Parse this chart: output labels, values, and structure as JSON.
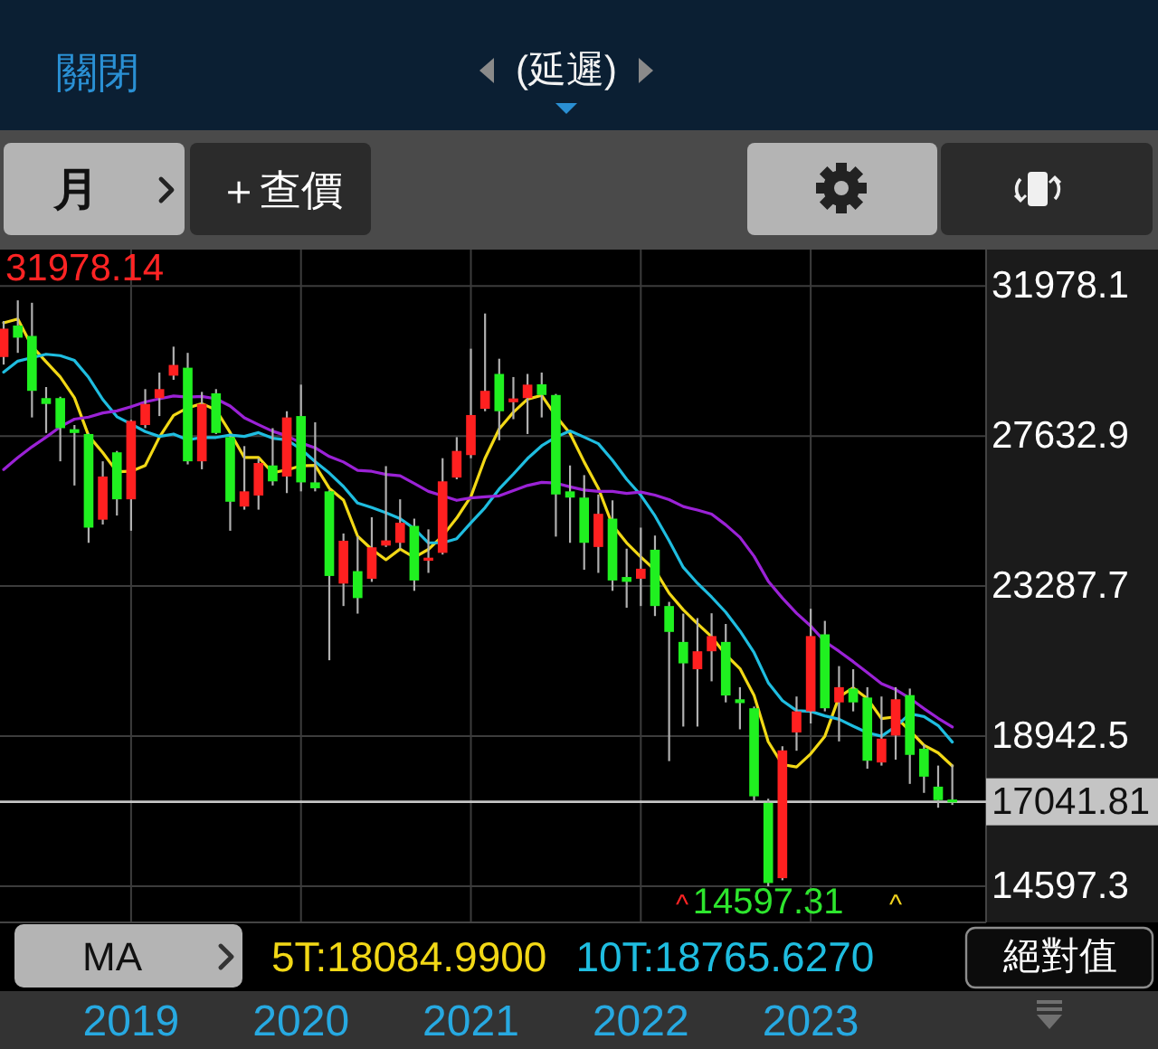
{
  "chart_data": {
    "type": "candlestick",
    "title": "(延遲)",
    "x": [
      "2018-04",
      "2018-05",
      "2018-06",
      "2018-07",
      "2018-08",
      "2018-09",
      "2018-10",
      "2018-11",
      "2018-12",
      "2019-01",
      "2019-02",
      "2019-03",
      "2019-04",
      "2019-05",
      "2019-06",
      "2019-07",
      "2019-08",
      "2019-09",
      "2019-10",
      "2019-11",
      "2019-12",
      "2020-01",
      "2020-02",
      "2020-03",
      "2020-04",
      "2020-05",
      "2020-06",
      "2020-07",
      "2020-08",
      "2020-09",
      "2020-10",
      "2020-11",
      "2020-12",
      "2021-01",
      "2021-02",
      "2021-03",
      "2021-04",
      "2021-05",
      "2021-06",
      "2021-07",
      "2021-08",
      "2021-09",
      "2021-10",
      "2021-11",
      "2021-12",
      "2022-01",
      "2022-02",
      "2022-03",
      "2022-04",
      "2022-05",
      "2022-06",
      "2022-07",
      "2022-08",
      "2022-09",
      "2022-10",
      "2022-11",
      "2022-12",
      "2023-01",
      "2023-02",
      "2023-03",
      "2023-04",
      "2023-05",
      "2023-06",
      "2023-07",
      "2023-08",
      "2023-09",
      "2023-10",
      "2023-11"
    ],
    "ohlc": [
      [
        29920,
        30960,
        29700,
        30740
      ],
      [
        30830,
        31560,
        30040,
        30480
      ],
      [
        30530,
        31490,
        28170,
        28940
      ],
      [
        28730,
        29050,
        27720,
        28560
      ],
      [
        28730,
        28770,
        26900,
        27860
      ],
      [
        27830,
        27950,
        26200,
        27720
      ],
      [
        27690,
        27720,
        24540,
        24980
      ],
      [
        25210,
        26900,
        25070,
        26460
      ],
      [
        27160,
        27200,
        25330,
        25800
      ],
      [
        25800,
        28100,
        24890,
        28070
      ],
      [
        27950,
        28990,
        27860,
        28560
      ],
      [
        28730,
        29470,
        28210,
        28990
      ],
      [
        29380,
        30220,
        29260,
        29690
      ],
      [
        29610,
        30040,
        26810,
        26900
      ],
      [
        26900,
        28910,
        26670,
        28560
      ],
      [
        28870,
        28990,
        27690,
        27720
      ],
      [
        27600,
        27630,
        24890,
        25730
      ],
      [
        25590,
        27340,
        25500,
        26030
      ],
      [
        25910,
        26990,
        25500,
        26850
      ],
      [
        26780,
        27860,
        26200,
        26320
      ],
      [
        26460,
        28350,
        25980,
        28170
      ],
      [
        28210,
        29120,
        26030,
        26290
      ],
      [
        26290,
        28030,
        26030,
        26120
      ],
      [
        26030,
        26060,
        21140,
        23580
      ],
      [
        23360,
        24810,
        22710,
        24600
      ],
      [
        23720,
        24720,
        22490,
        22940
      ],
      [
        23500,
        25280,
        23410,
        24410
      ],
      [
        24460,
        26760,
        24420,
        24610
      ],
      [
        24540,
        25800,
        24370,
        25120
      ],
      [
        25030,
        25240,
        23150,
        23450
      ],
      [
        24020,
        24930,
        23670,
        24110
      ],
      [
        24250,
        26990,
        24200,
        26320
      ],
      [
        26430,
        27600,
        26380,
        27200
      ],
      [
        27080,
        30160,
        26990,
        28240
      ],
      [
        28420,
        31180,
        28350,
        28940
      ],
      [
        29430,
        29870,
        27510,
        28350
      ],
      [
        28610,
        29340,
        28120,
        28720
      ],
      [
        28730,
        29430,
        27690,
        29120
      ],
      [
        29130,
        29470,
        28170,
        28820
      ],
      [
        28820,
        28850,
        24720,
        25940
      ],
      [
        26030,
        26780,
        24540,
        25850
      ],
      [
        25850,
        26500,
        23760,
        24540
      ],
      [
        24420,
        25940,
        23670,
        25380
      ],
      [
        25240,
        25770,
        23150,
        23450
      ],
      [
        23550,
        24370,
        22660,
        23410
      ],
      [
        23500,
        24980,
        22710,
        23790
      ],
      [
        24340,
        24750,
        22420,
        22710
      ],
      [
        22710,
        22830,
        18220,
        21960
      ],
      [
        21670,
        22490,
        19220,
        21050
      ],
      [
        20880,
        22360,
        19220,
        21400
      ],
      [
        21400,
        22500,
        20530,
        21840
      ],
      [
        21670,
        22190,
        19920,
        20120
      ],
      [
        20010,
        20360,
        19140,
        19900
      ],
      [
        19750,
        19800,
        17040,
        17200
      ],
      [
        17010,
        17130,
        14597.31,
        14690
      ],
      [
        14830,
        18650,
        14770,
        18530
      ],
      [
        19050,
        20090,
        18520,
        19660
      ],
      [
        19660,
        22630,
        19310,
        21840
      ],
      [
        21890,
        22280,
        19660,
        19750
      ],
      [
        19920,
        20970,
        18790,
        20360
      ],
      [
        20320,
        20880,
        19660,
        19920
      ],
      [
        20060,
        20360,
        18000,
        18230
      ],
      [
        18180,
        20090,
        18090,
        18870
      ],
      [
        18960,
        20360,
        18260,
        20010
      ],
      [
        20130,
        20320,
        17560,
        18400
      ],
      [
        18580,
        18700,
        17300,
        17770
      ],
      [
        17480,
        18090,
        16870,
        17090
      ],
      [
        17090,
        18120,
        16950,
        17041.81
      ]
    ],
    "colors": [
      "#ff2020",
      "#20f020",
      "#20f020",
      "#20f020",
      "#20f020",
      "#20f020",
      "#20f020",
      "#ff2020",
      "#20f020",
      "#ff2020",
      "#ff2020",
      "#ff2020",
      "#ff2020",
      "#20f020",
      "#ff2020",
      "#20f020",
      "#20f020",
      "#ff2020",
      "#ff2020",
      "#20f020",
      "#ff2020",
      "#20f020",
      "#20f020",
      "#20f020",
      "#ff2020",
      "#20f020",
      "#ff2020",
      "#ff2020",
      "#ff2020",
      "#20f020",
      "#ff2020",
      "#ff2020",
      "#ff2020",
      "#ff2020",
      "#ff2020",
      "#20f020",
      "#ff2020",
      "#ff2020",
      "#20f020",
      "#20f020",
      "#20f020",
      "#20f020",
      "#ff2020",
      "#20f020",
      "#20f020",
      "#ff2020",
      "#20f020",
      "#20f020",
      "#20f020",
      "#ff2020",
      "#ff2020",
      "#20f020",
      "#20f020",
      "#20f020",
      "#20f020",
      "#ff2020",
      "#ff2020",
      "#ff2020",
      "#20f020",
      "#ff2020",
      "#20f020",
      "#20f020",
      "#ff2020",
      "#ff2020",
      "#20f020",
      "#20f020",
      "#20f020",
      "#20f020"
    ],
    "series": [
      {
        "type": "line",
        "name": "5T:18084.9900",
        "color": "#f2d816",
        "values": [
          30910,
          31020,
          30230,
          29780,
          29340,
          28740,
          27640,
          27150,
          26600,
          26610,
          26780,
          27600,
          28230,
          28450,
          28570,
          28390,
          27730,
          27010,
          27010,
          26570,
          26650,
          26770,
          26780,
          26120,
          25780,
          24730,
          24350,
          24050,
          24360,
          24120,
          24350,
          24740,
          25260,
          25880,
          26990,
          27840,
          28320,
          28700,
          28810,
          28210,
          27710,
          26880,
          26120,
          25050,
          24540,
          24130,
          23750,
          23080,
          22600,
          22200,
          21820,
          21300,
          20900,
          20120,
          18780,
          18120,
          18050,
          18430,
          18940,
          20080,
          20340,
          20030,
          19450,
          19500,
          19100,
          18680,
          18460,
          18080
        ]
      },
      {
        "type": "line",
        "name": "10T:18765.6270",
        "color": "#1fbde0",
        "values": [
          29480,
          29800,
          29900,
          30000,
          29960,
          29820,
          29330,
          28690,
          28190,
          27980,
          27760,
          27620,
          27690,
          27520,
          27590,
          27590,
          27660,
          27620,
          27730,
          27570,
          27520,
          27250,
          26890,
          26560,
          26170,
          25690,
          25560,
          25410,
          25240,
          24950,
          24540,
          24540,
          24660,
          25120,
          25560,
          26100,
          26530,
          26980,
          27350,
          27600,
          27780,
          27600,
          27410,
          26930,
          26380,
          25920,
          25320,
          24600,
          23830,
          23370,
          22970,
          22530,
          21990,
          21360,
          20490,
          19970,
          19680,
          19660,
          19530,
          19430,
          19230,
          19040,
          18940,
          19220,
          19590,
          19510,
          19250,
          18770
        ]
      },
      {
        "type": "line",
        "color": "#9b22d6",
        "values": [
          26660,
          27010,
          27320,
          27600,
          27900,
          28120,
          28180,
          28300,
          28360,
          28480,
          28620,
          28710,
          28790,
          28760,
          28780,
          28710,
          28500,
          28160,
          27960,
          27770,
          27640,
          27430,
          27290,
          27040,
          26880,
          26640,
          26610,
          26520,
          26480,
          26260,
          26030,
          25900,
          25770,
          25840,
          25870,
          25900,
          26050,
          26200,
          26290,
          26270,
          26160,
          26070,
          26030,
          26030,
          25970,
          26010,
          25920,
          25790,
          25590,
          25490,
          25370,
          25060,
          24700,
          24150,
          23430,
          22940,
          22500,
          22130,
          21680,
          21400,
          21100,
          20780,
          20460,
          20290,
          20040,
          19740,
          19460,
          19210
        ]
      }
    ],
    "xlim": [
      "2018-03-24",
      "2024-01-13"
    ],
    "xticks": [
      "2019",
      "2020",
      "2021",
      "2022",
      "2023"
    ],
    "ylim": [
      13550,
      33030
    ],
    "yticks": [
      {
        "value": 31978.14,
        "label": "31978.1"
      },
      27632.9,
      23287.7,
      18942.5,
      {
        "value": 14597.31,
        "label": "14597.3"
      }
    ],
    "grid": true,
    "legend": "bottom",
    "ref_lines": [
      {
        "axis": "y",
        "value": 17041.81,
        "label": "17041.81",
        "color": "#c4c4c4"
      }
    ],
    "annotations": [
      "關閉",
      "月",
      "＋查價",
      "MA",
      "絕對值",
      "31978.14",
      "^",
      "^",
      {
        "text": "14597.31",
        "x": "2022-10",
        "y": 14597.31
      }
    ]
  }
}
